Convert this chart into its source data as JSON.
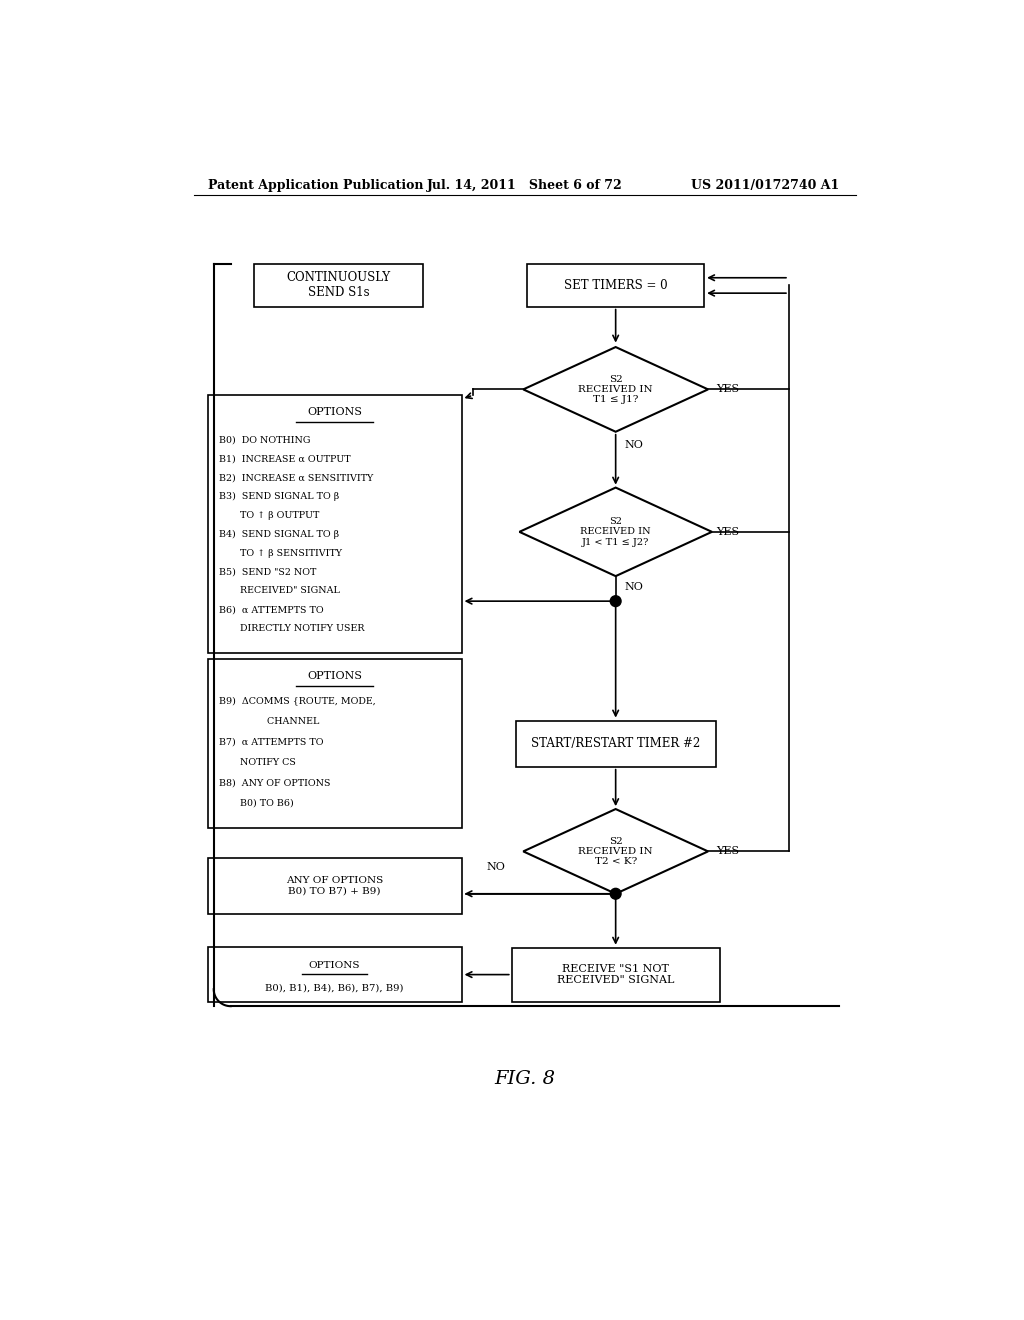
{
  "title_left": "Patent Application Publication",
  "title_center": "Jul. 14, 2011   Sheet 6 of 72",
  "title_right": "US 2011/0172740 A1",
  "fig_label": "FIG. 8",
  "background_color": "#ffffff",
  "text_color": "#000000"
}
